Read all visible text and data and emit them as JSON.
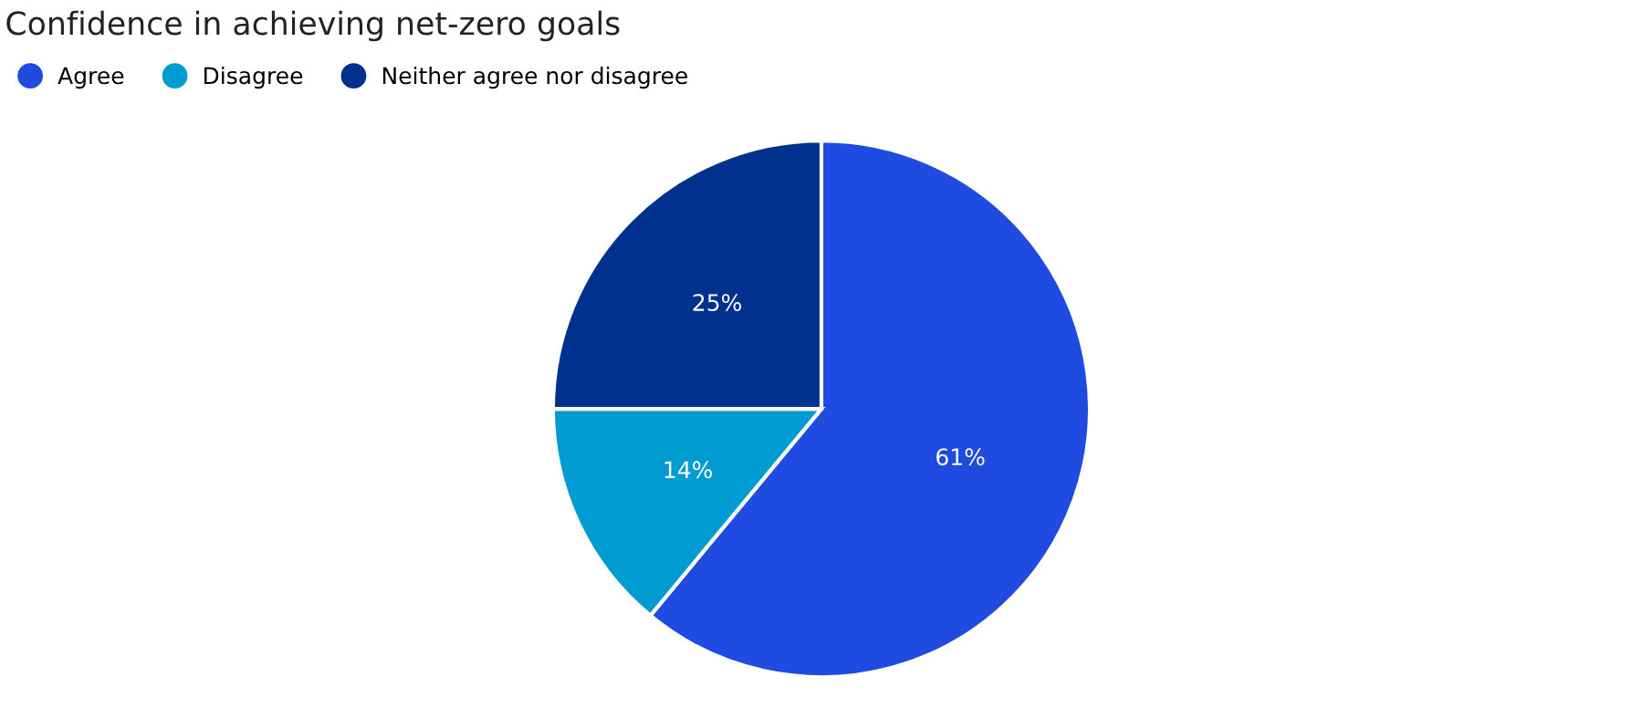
{
  "chart_data": {
    "type": "pie",
    "title": "Confidence in achieving net-zero goals",
    "categories": [
      "Agree",
      "Disagree",
      "Neither agree nor disagree"
    ],
    "values": [
      61,
      14,
      25
    ],
    "value_labels": [
      "61%",
      "14%",
      "25%"
    ],
    "colors": [
      "#1f4be0",
      "#009bd0",
      "#00318f"
    ],
    "legend": "top left"
  }
}
